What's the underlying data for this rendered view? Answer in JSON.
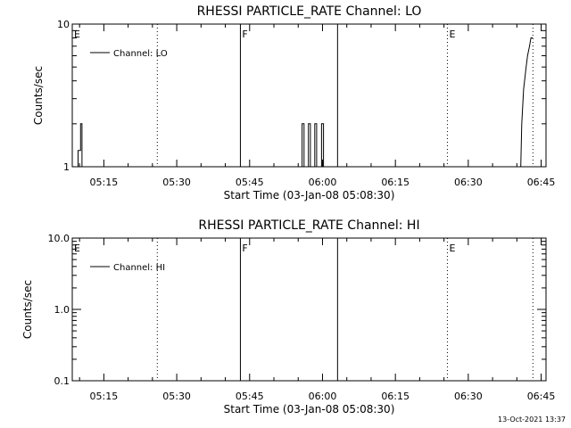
{
  "footer": {
    "timestamp": "13-Oct-2021 13:37"
  },
  "chart_data": [
    {
      "type": "line",
      "title": "RHESSI PARTICLE_RATE Channel: LO",
      "xlabel": "Start Time (03-Jan-08 05:08:30)",
      "ylabel": "Counts/sec",
      "xlim_minutes": [
        0,
        97.5
      ],
      "ylim": [
        1,
        10
      ],
      "yscale": "log",
      "xticks": [
        {
          "label": "05:15",
          "value": 6.5
        },
        {
          "label": "05:30",
          "value": 21.5
        },
        {
          "label": "05:45",
          "value": 36.5
        },
        {
          "label": "06:00",
          "value": 51.5
        },
        {
          "label": "06:15",
          "value": 66.5
        },
        {
          "label": "06:30",
          "value": 81.5
        },
        {
          "label": "06:45",
          "value": 96.5
        }
      ],
      "yticks": [
        {
          "label": "10",
          "value": 10
        },
        {
          "label": "1",
          "value": 1
        }
      ],
      "legend": {
        "label": "Channel: LO",
        "position": "top-left"
      },
      "markers": [
        {
          "label": "E",
          "value": 0,
          "style": "none"
        },
        {
          "label": "",
          "value": 17.5,
          "style": "dotted"
        },
        {
          "label": "F",
          "value": 34.6,
          "style": "solid"
        },
        {
          "label": "",
          "value": 54.6,
          "style": "solid"
        },
        {
          "label": "E",
          "value": 77.2,
          "style": "dotted"
        },
        {
          "label": "",
          "value": 94.8,
          "style": "dotted"
        }
      ],
      "series": [
        {
          "name": "Channel: LO",
          "x": [
            0,
            1.2,
            1.2,
            1.7,
            1.7,
            2.0,
            2.0,
            47.3,
            47.3,
            47.7,
            47.7,
            48.6,
            48.6,
            49.0,
            49.0,
            49.9,
            49.9,
            50.3,
            50.3,
            51.3,
            51.3,
            51.7,
            51.7,
            92.3,
            92.5,
            92.9,
            93.4,
            93.7,
            94.1,
            94.4,
            94.8
          ],
          "y": [
            1,
            1,
            1.3,
            1.3,
            2,
            2,
            1,
            1,
            2,
            2,
            1,
            1,
            2,
            2,
            1,
            1,
            2,
            2,
            1,
            1,
            2,
            2,
            1,
            1,
            2,
            3.5,
            5,
            6,
            7,
            8,
            8
          ]
        }
      ]
    },
    {
      "type": "line",
      "title": "RHESSI PARTICLE_RATE Channel: HI",
      "xlabel": "Start Time (03-Jan-08 05:08:30)",
      "ylabel": "Counts/sec",
      "xlim_minutes": [
        0,
        97.5
      ],
      "ylim": [
        0.1,
        10
      ],
      "yscale": "log",
      "xticks": [
        {
          "label": "05:15",
          "value": 6.5
        },
        {
          "label": "05:30",
          "value": 21.5
        },
        {
          "label": "05:45",
          "value": 36.5
        },
        {
          "label": "06:00",
          "value": 51.5
        },
        {
          "label": "06:15",
          "value": 66.5
        },
        {
          "label": "06:30",
          "value": 81.5
        },
        {
          "label": "06:45",
          "value": 96.5
        }
      ],
      "yticks": [
        {
          "label": "10.0",
          "value": 10
        },
        {
          "label": "1.0",
          "value": 1
        },
        {
          "label": "0.1",
          "value": 0.1
        }
      ],
      "legend": {
        "label": "Channel: HI",
        "position": "top-left"
      },
      "markers": [
        {
          "label": "E",
          "value": 0,
          "style": "none"
        },
        {
          "label": "",
          "value": 17.5,
          "style": "dotted"
        },
        {
          "label": "F",
          "value": 34.6,
          "style": "solid"
        },
        {
          "label": "",
          "value": 54.6,
          "style": "solid"
        },
        {
          "label": "E",
          "value": 77.2,
          "style": "dotted"
        },
        {
          "label": "",
          "value": 94.8,
          "style": "dotted"
        }
      ],
      "series": [
        {
          "name": "Channel: HI",
          "x": [],
          "y": []
        }
      ]
    }
  ]
}
